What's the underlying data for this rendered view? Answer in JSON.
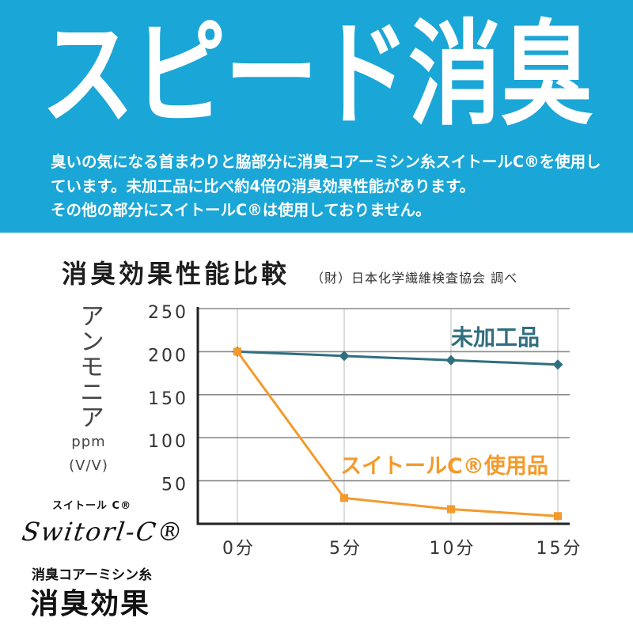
{
  "colors": {
    "banner": "#1aa6d6"
  },
  "banner": {
    "title": "スピード消臭",
    "description_lines": [
      "臭いの気になる首まわりと脇部分に消臭コアーミシン糸スイトールC®を使用し",
      "ています。未加工品に比べ約4倍の消臭効果性能があります。",
      "その他の部分にスイトールC®は使用しておりません。"
    ]
  },
  "chart_data": {
    "type": "line",
    "title": "消臭効果性能比較",
    "source": "（財）日本化学繊維検査協会 調べ",
    "ylabel": "アンモニア",
    "yunit": [
      "ppm",
      "(V/V)"
    ],
    "ylim": [
      0,
      250
    ],
    "yticks": [
      50,
      100,
      150,
      200,
      250
    ],
    "x": [
      0,
      5,
      10,
      15
    ],
    "xticklabels": [
      "0分",
      "5分",
      "10分",
      "15分"
    ],
    "grid": true,
    "legend": "inline",
    "series": [
      {
        "name": "未加工品",
        "values": [
          200,
          195,
          190,
          185
        ],
        "color": "#2f6e7e",
        "marker": "diamond"
      },
      {
        "name": "スイトールC®使用品",
        "values": [
          200,
          30,
          17,
          9
        ],
        "color": "#f39a2b",
        "marker": "square"
      }
    ]
  },
  "logo": {
    "kana": "スイトール C®",
    "script": "Switorl-C®"
  },
  "caption": {
    "subtitle": "消臭コアーミシン糸",
    "title": "消臭効果"
  }
}
